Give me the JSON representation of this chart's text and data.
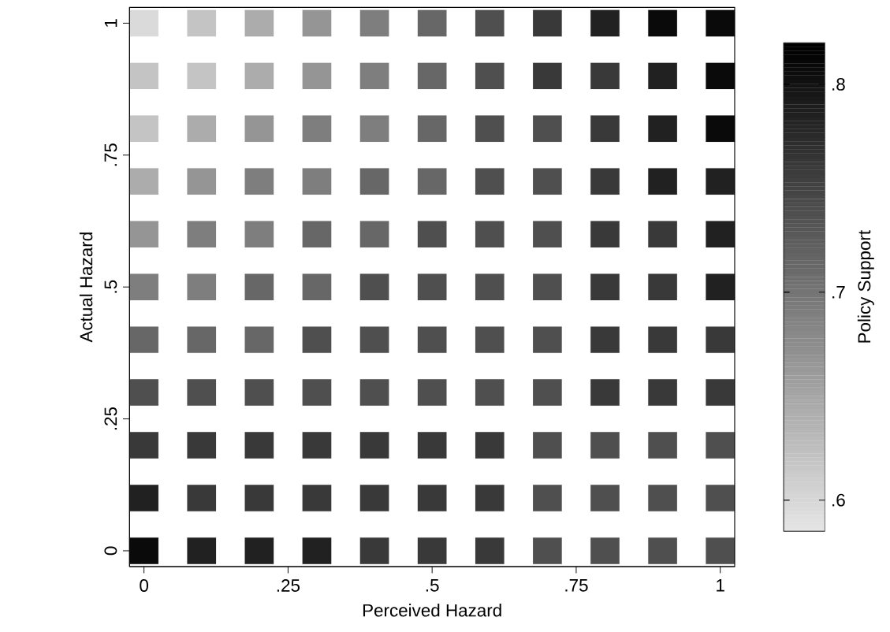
{
  "chart_data": {
    "type": "scatter",
    "xlabel": "Perceived Hazard",
    "ylabel": "Actual Hazard",
    "clabel": "Policy Support",
    "marker": "square",
    "xlim": [
      -0.025,
      1.025
    ],
    "ylim": [
      -0.03,
      1.03
    ],
    "xticks": [
      0,
      {
        "value": 0.25,
        "label": ".25"
      },
      {
        "value": 0.5,
        "label": ".5"
      },
      {
        "value": 0.75,
        "label": ".75"
      },
      1
    ],
    "yticks": [
      0,
      {
        "value": 0.25,
        "label": ".25"
      },
      {
        "value": 0.5,
        "label": ".5"
      },
      {
        "value": 0.75,
        "label": ".75"
      },
      1
    ],
    "clim": [
      0.585,
      0.82
    ],
    "cticks": [
      {
        "value": 0.6,
        "label": ".6"
      },
      {
        "value": 0.7,
        "label": ".7"
      },
      {
        "value": 0.8,
        "label": ".8"
      }
    ],
    "x": [
      0,
      0.1,
      0.2,
      0.3,
      0.4,
      0.5,
      0.6,
      0.7,
      0.8,
      0.9,
      1,
      0,
      0.1,
      0.2,
      0.3,
      0.4,
      0.5,
      0.6,
      0.7,
      0.8,
      0.9,
      1,
      0,
      0.1,
      0.2,
      0.3,
      0.4,
      0.5,
      0.6,
      0.7,
      0.8,
      0.9,
      1,
      0,
      0.1,
      0.2,
      0.3,
      0.4,
      0.5,
      0.6,
      0.7,
      0.8,
      0.9,
      1,
      0,
      0.1,
      0.2,
      0.3,
      0.4,
      0.5,
      0.6,
      0.7,
      0.8,
      0.9,
      1,
      0,
      0.1,
      0.2,
      0.3,
      0.4,
      0.5,
      0.6,
      0.7,
      0.8,
      0.9,
      1,
      0,
      0.1,
      0.2,
      0.3,
      0.4,
      0.5,
      0.6,
      0.7,
      0.8,
      0.9,
      1,
      0,
      0.1,
      0.2,
      0.3,
      0.4,
      0.5,
      0.6,
      0.7,
      0.8,
      0.9,
      1,
      0,
      0.1,
      0.2,
      0.3,
      0.4,
      0.5,
      0.6,
      0.7,
      0.8,
      0.9,
      1,
      0,
      0.1,
      0.2,
      0.3,
      0.4,
      0.5,
      0.6,
      0.7,
      0.8,
      0.9,
      1,
      0,
      0.1,
      0.2,
      0.3,
      0.4,
      0.5,
      0.6,
      0.7,
      0.8,
      0.9,
      1
    ],
    "values": [
      0,
      0,
      0,
      0,
      0,
      0,
      0,
      0,
      0,
      0,
      0,
      0.1,
      0.1,
      0.1,
      0.1,
      0.1,
      0.1,
      0.1,
      0.1,
      0.1,
      0.1,
      0.1,
      0.2,
      0.2,
      0.2,
      0.2,
      0.2,
      0.2,
      0.2,
      0.2,
      0.2,
      0.2,
      0.2,
      0.3,
      0.3,
      0.3,
      0.3,
      0.3,
      0.3,
      0.3,
      0.3,
      0.3,
      0.3,
      0.3,
      0.4,
      0.4,
      0.4,
      0.4,
      0.4,
      0.4,
      0.4,
      0.4,
      0.4,
      0.4,
      0.4,
      0.5,
      0.5,
      0.5,
      0.5,
      0.5,
      0.5,
      0.5,
      0.5,
      0.5,
      0.5,
      0.5,
      0.6,
      0.6,
      0.6,
      0.6,
      0.6,
      0.6,
      0.6,
      0.6,
      0.6,
      0.6,
      0.6,
      0.7,
      0.7,
      0.7,
      0.7,
      0.7,
      0.7,
      0.7,
      0.7,
      0.7,
      0.7,
      0.7,
      0.8,
      0.8,
      0.8,
      0.8,
      0.8,
      0.8,
      0.8,
      0.8,
      0.8,
      0.8,
      0.8,
      0.9,
      0.9,
      0.9,
      0.9,
      0.9,
      0.9,
      0.9,
      0.9,
      0.9,
      0.9,
      0.9,
      1,
      1,
      1,
      1,
      1,
      1,
      1,
      1,
      1,
      1,
      1
    ],
    "cvalues": [
      0.808,
      0.785,
      0.785,
      0.785,
      0.761,
      0.761,
      0.761,
      0.738,
      0.738,
      0.738,
      0.738,
      0.785,
      0.761,
      0.761,
      0.761,
      0.761,
      0.761,
      0.761,
      0.738,
      0.738,
      0.738,
      0.738,
      0.761,
      0.761,
      0.761,
      0.761,
      0.761,
      0.761,
      0.761,
      0.738,
      0.738,
      0.738,
      0.738,
      0.738,
      0.738,
      0.738,
      0.738,
      0.738,
      0.738,
      0.738,
      0.738,
      0.761,
      0.761,
      0.761,
      0.714,
      0.714,
      0.714,
      0.738,
      0.738,
      0.738,
      0.738,
      0.738,
      0.761,
      0.761,
      0.761,
      0.691,
      0.691,
      0.714,
      0.714,
      0.738,
      0.738,
      0.738,
      0.738,
      0.761,
      0.761,
      0.785,
      0.667,
      0.691,
      0.691,
      0.714,
      0.714,
      0.738,
      0.738,
      0.738,
      0.761,
      0.761,
      0.785,
      0.644,
      0.667,
      0.691,
      0.691,
      0.714,
      0.714,
      0.738,
      0.738,
      0.761,
      0.785,
      0.785,
      0.62,
      0.644,
      0.667,
      0.691,
      0.691,
      0.714,
      0.738,
      0.738,
      0.761,
      0.785,
      0.808,
      0.62,
      0.62,
      0.644,
      0.667,
      0.691,
      0.714,
      0.738,
      0.761,
      0.761,
      0.785,
      0.808,
      0.597,
      0.62,
      0.644,
      0.667,
      0.691,
      0.714,
      0.738,
      0.761,
      0.785,
      0.808,
      0.808
    ]
  }
}
